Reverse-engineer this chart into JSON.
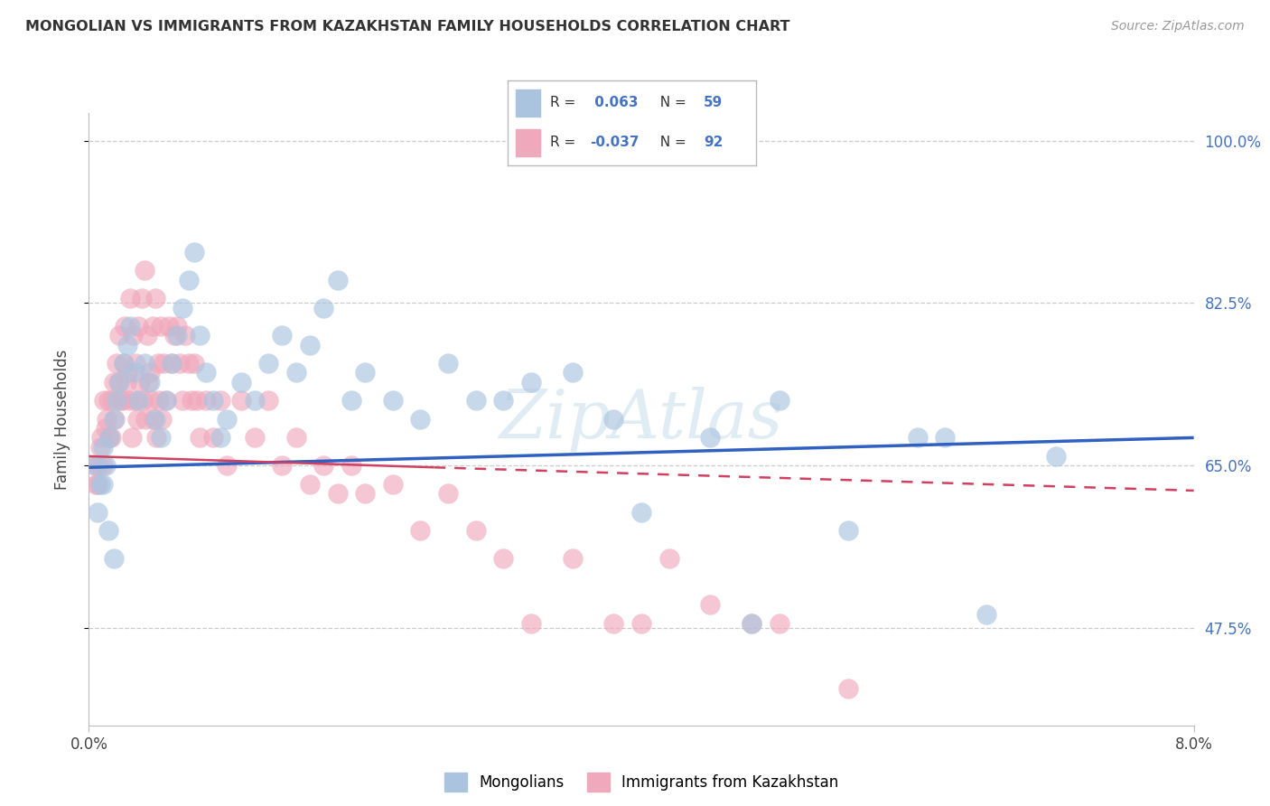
{
  "title": "MONGOLIAN VS IMMIGRANTS FROM KAZAKHSTAN FAMILY HOUSEHOLDS CORRELATION CHART",
  "source": "Source: ZipAtlas.com",
  "ylabel": "Family Households",
  "x_min": 0.0,
  "x_max": 8.0,
  "y_min": 37.0,
  "y_max": 103.0,
  "yticks": [
    47.5,
    65.0,
    82.5,
    100.0
  ],
  "ytick_labels": [
    "47.5%",
    "65.0%",
    "82.5%",
    "100.0%"
  ],
  "xtick_positions": [
    0.0,
    8.0
  ],
  "xtick_labels": [
    "0.0%",
    "8.0%"
  ],
  "blue_color": "#aac4e0",
  "pink_color": "#f0a8bc",
  "blue_line_color": "#3060c0",
  "pink_line_color": "#d04060",
  "rvalue_color": "#4472c4",
  "legend_label1": "Mongolians",
  "legend_label2": "Immigrants from Kazakhstan",
  "r1": "0.063",
  "n1": "59",
  "r2": "-0.037",
  "n2": "92",
  "blue_trend_x0": 0.0,
  "blue_trend_y0": 64.8,
  "blue_trend_x1": 8.0,
  "blue_trend_y1": 68.0,
  "pink_solid_x0": 0.0,
  "pink_solid_y0": 66.0,
  "pink_solid_x1": 2.5,
  "pink_solid_y1": 64.8,
  "pink_dash_x0": 2.5,
  "pink_dash_y0": 64.8,
  "pink_dash_x1": 8.0,
  "pink_dash_y1": 62.3,
  "blue_x": [
    0.05,
    0.08,
    0.1,
    0.12,
    0.15,
    0.18,
    0.2,
    0.22,
    0.25,
    0.28,
    0.3,
    0.33,
    0.36,
    0.4,
    0.44,
    0.48,
    0.52,
    0.56,
    0.6,
    0.64,
    0.68,
    0.72,
    0.76,
    0.8,
    0.85,
    0.9,
    0.95,
    1.0,
    1.1,
    1.2,
    1.3,
    1.4,
    1.5,
    1.6,
    1.7,
    1.8,
    1.9,
    2.0,
    2.2,
    2.4,
    2.6,
    2.8,
    3.0,
    3.2,
    3.5,
    3.8,
    4.0,
    4.5,
    4.8,
    5.0,
    5.5,
    6.0,
    6.2,
    6.5,
    7.0,
    0.06,
    0.1,
    0.14,
    0.18
  ],
  "blue_y": [
    65.0,
    63.0,
    67.0,
    65.0,
    68.0,
    70.0,
    72.0,
    74.0,
    76.0,
    78.0,
    80.0,
    75.0,
    72.0,
    76.0,
    74.0,
    70.0,
    68.0,
    72.0,
    76.0,
    79.0,
    82.0,
    85.0,
    88.0,
    79.0,
    75.0,
    72.0,
    68.0,
    70.0,
    74.0,
    72.0,
    76.0,
    79.0,
    75.0,
    78.0,
    82.0,
    85.0,
    72.0,
    75.0,
    72.0,
    70.0,
    76.0,
    72.0,
    72.0,
    74.0,
    75.0,
    70.0,
    60.0,
    68.0,
    48.0,
    72.0,
    58.0,
    68.0,
    68.0,
    49.0,
    66.0,
    60.0,
    63.0,
    58.0,
    55.0
  ],
  "pink_x": [
    0.04,
    0.06,
    0.08,
    0.1,
    0.12,
    0.14,
    0.16,
    0.18,
    0.2,
    0.22,
    0.24,
    0.26,
    0.28,
    0.3,
    0.32,
    0.34,
    0.36,
    0.38,
    0.4,
    0.42,
    0.44,
    0.46,
    0.48,
    0.5,
    0.52,
    0.54,
    0.56,
    0.58,
    0.6,
    0.62,
    0.64,
    0.66,
    0.68,
    0.7,
    0.72,
    0.74,
    0.76,
    0.78,
    0.8,
    0.85,
    0.9,
    0.95,
    1.0,
    1.1,
    1.2,
    1.3,
    1.4,
    1.5,
    1.6,
    1.7,
    1.8,
    1.9,
    2.0,
    2.2,
    2.4,
    2.6,
    2.8,
    3.0,
    3.2,
    3.5,
    3.8,
    4.0,
    4.2,
    4.5,
    4.8,
    5.0,
    5.5,
    0.05,
    0.07,
    0.09,
    0.11,
    0.13,
    0.15,
    0.17,
    0.19,
    0.21,
    0.23,
    0.25,
    0.27,
    0.29,
    0.31,
    0.33,
    0.35,
    0.37,
    0.39,
    0.41,
    0.43,
    0.45,
    0.47,
    0.49,
    0.51,
    0.53
  ],
  "pink_y": [
    65.0,
    63.0,
    67.0,
    65.0,
    69.0,
    72.0,
    68.0,
    74.0,
    76.0,
    79.0,
    72.0,
    80.0,
    75.0,
    83.0,
    79.0,
    76.0,
    80.0,
    83.0,
    86.0,
    79.0,
    75.0,
    80.0,
    83.0,
    76.0,
    80.0,
    76.0,
    72.0,
    80.0,
    76.0,
    79.0,
    80.0,
    76.0,
    72.0,
    79.0,
    76.0,
    72.0,
    76.0,
    72.0,
    68.0,
    72.0,
    68.0,
    72.0,
    65.0,
    72.0,
    68.0,
    72.0,
    65.0,
    68.0,
    63.0,
    65.0,
    62.0,
    65.0,
    62.0,
    63.0,
    58.0,
    62.0,
    58.0,
    55.0,
    48.0,
    55.0,
    48.0,
    48.0,
    55.0,
    50.0,
    48.0,
    48.0,
    41.0,
    63.0,
    65.0,
    68.0,
    72.0,
    70.0,
    68.0,
    72.0,
    70.0,
    74.0,
    72.0,
    76.0,
    74.0,
    72.0,
    68.0,
    72.0,
    70.0,
    74.0,
    72.0,
    70.0,
    74.0,
    72.0,
    70.0,
    68.0,
    72.0,
    70.0
  ]
}
